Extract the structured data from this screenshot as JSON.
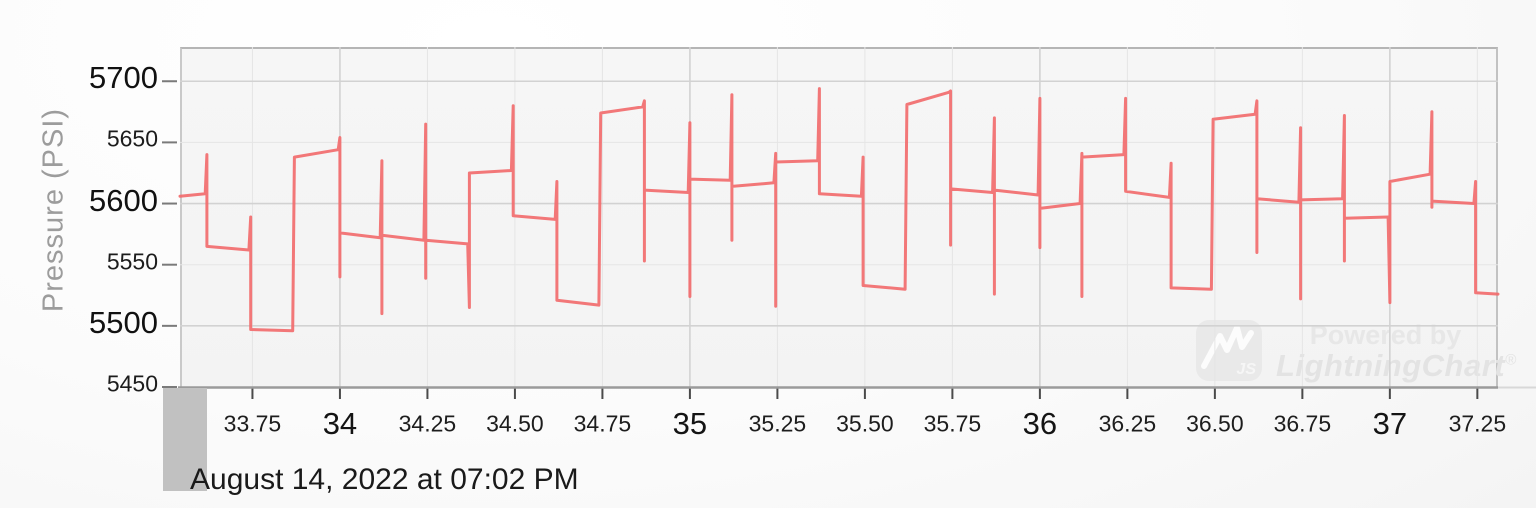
{
  "watermark": {
    "powered_by": "Powered by",
    "brand": "LightningChart",
    "registered": "®",
    "logo_text": "JS",
    "logo_icon": "lightning-bolt-icon"
  },
  "footer": {
    "date_label": "August 14, 2022 at 07:02 PM"
  },
  "colors": {
    "series": "#f2696a",
    "plot_background": "#f4f4f4",
    "grid_major": "#d2d2d2",
    "grid_minor": "#e5e5e5",
    "axis_line": "#9a9a9a",
    "axis_line_extension": "#d8d8d8",
    "tick_mark_x": "#4a4a4a",
    "tick_mark_y": "#7a7a7a",
    "watermark_text": "#e5e5e5",
    "scrollbar_thumb": "#c1c1c1",
    "axis_title_text": "#9c9c9c"
  },
  "chart_data": {
    "type": "line",
    "title": "",
    "xlabel": "",
    "ylabel": "Pressure (PSI)",
    "xlim": [
      33.543,
      37.309
    ],
    "ylim": [
      5450,
      5728
    ],
    "grid": true,
    "legend": "none",
    "annotation": "August 14, 2022 at 07:02 PM",
    "x_ticks": [
      {
        "v": 33.75,
        "label": "33.75",
        "major": false
      },
      {
        "v": 34,
        "label": "34",
        "major": true
      },
      {
        "v": 34.25,
        "label": "34.25",
        "major": false
      },
      {
        "v": 34.5,
        "label": "34.50",
        "major": false
      },
      {
        "v": 34.75,
        "label": "34.75",
        "major": false
      },
      {
        "v": 35,
        "label": "35",
        "major": true
      },
      {
        "v": 35.25,
        "label": "35.25",
        "major": false
      },
      {
        "v": 35.5,
        "label": "35.50",
        "major": false
      },
      {
        "v": 35.75,
        "label": "35.75",
        "major": false
      },
      {
        "v": 36,
        "label": "36",
        "major": true
      },
      {
        "v": 36.25,
        "label": "36.25",
        "major": false
      },
      {
        "v": 36.5,
        "label": "36.50",
        "major": false
      },
      {
        "v": 36.75,
        "label": "36.75",
        "major": false
      },
      {
        "v": 37,
        "label": "37",
        "major": true
      },
      {
        "v": 37.25,
        "label": "37.25",
        "major": false
      }
    ],
    "y_ticks": [
      {
        "v": 5450,
        "label": "5450",
        "major": false
      },
      {
        "v": 5500,
        "label": "5500",
        "major": true
      },
      {
        "v": 5550,
        "label": "5550",
        "major": false
      },
      {
        "v": 5600,
        "label": "5600",
        "major": true
      },
      {
        "v": 5650,
        "label": "5650",
        "major": false
      },
      {
        "v": 5700,
        "label": "5700",
        "major": true
      }
    ],
    "series": [
      {
        "name": "Pressure",
        "color": "#f2696a",
        "points": [
          [
            33.543,
            5606
          ],
          [
            33.615,
            5608
          ],
          [
            33.62,
            5640
          ],
          [
            33.62,
            5565
          ],
          [
            33.74,
            5562
          ],
          [
            33.745,
            5589
          ],
          [
            33.745,
            5497
          ],
          [
            33.865,
            5496
          ],
          [
            33.87,
            5638
          ],
          [
            33.995,
            5644
          ],
          [
            34.0,
            5654
          ],
          [
            34.0,
            5540
          ],
          [
            34.0,
            5576
          ],
          [
            34.115,
            5572
          ],
          [
            34.12,
            5635
          ],
          [
            34.12,
            5510
          ],
          [
            34.12,
            5574
          ],
          [
            34.24,
            5570
          ],
          [
            34.245,
            5665
          ],
          [
            34.245,
            5539
          ],
          [
            34.245,
            5570
          ],
          [
            34.365,
            5567
          ],
          [
            34.37,
            5515
          ],
          [
            34.37,
            5625
          ],
          [
            34.49,
            5627
          ],
          [
            34.495,
            5680
          ],
          [
            34.495,
            5590
          ],
          [
            34.615,
            5587
          ],
          [
            34.62,
            5618
          ],
          [
            34.62,
            5521
          ],
          [
            34.74,
            5517
          ],
          [
            34.745,
            5674
          ],
          [
            34.865,
            5679
          ],
          [
            34.87,
            5684
          ],
          [
            34.87,
            5553
          ],
          [
            34.87,
            5611
          ],
          [
            34.995,
            5609
          ],
          [
            35.0,
            5666
          ],
          [
            35.0,
            5524
          ],
          [
            35.0,
            5620
          ],
          [
            35.115,
            5619
          ],
          [
            35.12,
            5689
          ],
          [
            35.12,
            5570
          ],
          [
            35.12,
            5614
          ],
          [
            35.24,
            5617
          ],
          [
            35.245,
            5641
          ],
          [
            35.245,
            5516
          ],
          [
            35.245,
            5634
          ],
          [
            35.365,
            5635
          ],
          [
            35.37,
            5694
          ],
          [
            35.37,
            5608
          ],
          [
            35.49,
            5606
          ],
          [
            35.495,
            5638
          ],
          [
            35.495,
            5533
          ],
          [
            35.615,
            5530
          ],
          [
            35.62,
            5681
          ],
          [
            35.74,
            5691
          ],
          [
            35.745,
            5692
          ],
          [
            35.745,
            5566
          ],
          [
            35.745,
            5612
          ],
          [
            35.865,
            5609
          ],
          [
            35.87,
            5670
          ],
          [
            35.87,
            5526
          ],
          [
            35.87,
            5611
          ],
          [
            35.995,
            5607
          ],
          [
            36.0,
            5686
          ],
          [
            36.0,
            5564
          ],
          [
            36.0,
            5596
          ],
          [
            36.115,
            5600
          ],
          [
            36.12,
            5641
          ],
          [
            36.12,
            5524
          ],
          [
            36.12,
            5638
          ],
          [
            36.24,
            5640
          ],
          [
            36.245,
            5686
          ],
          [
            36.245,
            5610
          ],
          [
            36.37,
            5605
          ],
          [
            36.375,
            5633
          ],
          [
            36.375,
            5531
          ],
          [
            36.49,
            5530
          ],
          [
            36.495,
            5669
          ],
          [
            36.615,
            5673
          ],
          [
            36.62,
            5684
          ],
          [
            36.62,
            5560
          ],
          [
            36.62,
            5604
          ],
          [
            36.74,
            5601
          ],
          [
            36.745,
            5662
          ],
          [
            36.745,
            5522
          ],
          [
            36.745,
            5603
          ],
          [
            36.865,
            5604
          ],
          [
            36.87,
            5672
          ],
          [
            36.87,
            5553
          ],
          [
            36.87,
            5588
          ],
          [
            36.995,
            5589
          ],
          [
            37.0,
            5519
          ],
          [
            37.0,
            5618
          ],
          [
            37.115,
            5624
          ],
          [
            37.12,
            5675
          ],
          [
            37.12,
            5597
          ],
          [
            37.12,
            5602
          ],
          [
            37.24,
            5600
          ],
          [
            37.245,
            5618
          ],
          [
            37.245,
            5527
          ],
          [
            37.309,
            5526
          ]
        ]
      }
    ]
  }
}
